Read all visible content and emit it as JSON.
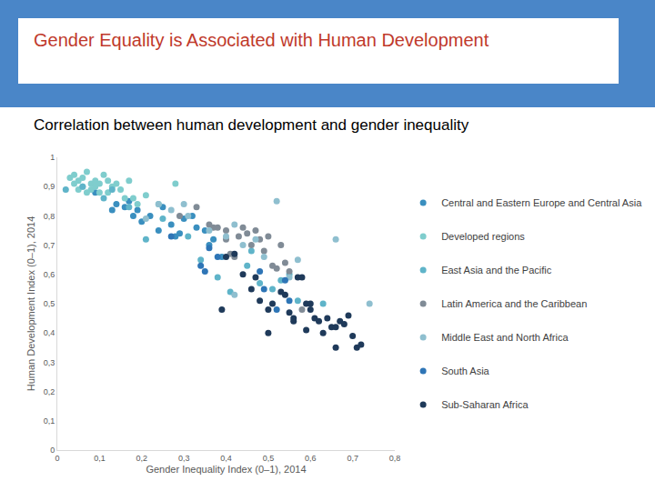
{
  "chart_data": {
    "type": "scatter",
    "title": "Gender Equality is Associated with Human Development",
    "subtitle": "Correlation between human development and gender inequality",
    "x_label": "Gender Inequality Index (0–1), 2014",
    "y_label": "Human Development Index (0–1), 2014",
    "xlim": [
      0,
      0.8
    ],
    "ylim": [
      0,
      1
    ],
    "xticks": [
      0,
      {
        "value": 0.1,
        "label": "0,1"
      },
      {
        "value": 0.2,
        "label": "0,2"
      },
      {
        "value": 0.3,
        "label": "0,3"
      },
      {
        "value": 0.4,
        "label": "0,4"
      },
      {
        "value": 0.5,
        "label": "0,5"
      },
      {
        "value": 0.6,
        "label": "0,6"
      },
      {
        "value": 0.7,
        "label": "0,7"
      },
      {
        "value": 0.8,
        "label": "0,8"
      }
    ],
    "yticks": [
      0,
      {
        "value": 0.1,
        "label": "0,1"
      },
      {
        "value": 0.2,
        "label": "0,2"
      },
      {
        "value": 0.3,
        "label": "0,3"
      },
      {
        "value": 0.4,
        "label": "0,4"
      },
      {
        "value": 0.5,
        "label": "0,5"
      },
      {
        "value": 0.6,
        "label": "0,6"
      },
      {
        "value": 0.7,
        "label": "0,7"
      },
      {
        "value": 0.8,
        "label": "0,8"
      },
      {
        "value": 0.9,
        "label": "0,9"
      },
      1
    ],
    "grid": false,
    "legend": "right",
    "marker": "circle",
    "series": [
      {
        "name": "Central and Eastern Europe and Central Asia",
        "color": "#3a8fbf",
        "x": [
          0.09,
          0.14,
          0.16,
          0.17,
          0.13,
          0.18,
          0.2,
          0.24,
          0.27,
          0.29,
          0.3,
          0.33,
          0.35,
          0.37,
          0.36,
          0.25,
          0.22,
          0.19,
          0.32,
          0.28,
          0.39
        ],
        "values": [
          0.88,
          0.84,
          0.83,
          0.85,
          0.82,
          0.8,
          0.78,
          0.75,
          0.77,
          0.74,
          0.79,
          0.76,
          0.75,
          0.72,
          0.7,
          0.83,
          0.8,
          0.82,
          0.8,
          0.73,
          0.66
        ]
      },
      {
        "name": "Developed regions",
        "color": "#7fcdcd",
        "x": [
          0.04,
          0.05,
          0.07,
          0.08,
          0.03,
          0.06,
          0.09,
          0.1,
          0.11,
          0.12,
          0.13,
          0.08,
          0.07,
          0.1,
          0.12,
          0.14,
          0.15,
          0.16,
          0.17,
          0.18,
          0.05,
          0.09,
          0.06,
          0.04,
          0.28,
          0.21,
          0.24,
          0.19
        ],
        "values": [
          0.94,
          0.92,
          0.95,
          0.91,
          0.93,
          0.9,
          0.92,
          0.91,
          0.94,
          0.92,
          0.9,
          0.89,
          0.88,
          0.88,
          0.88,
          0.91,
          0.89,
          0.86,
          0.92,
          0.86,
          0.89,
          0.9,
          0.93,
          0.91,
          0.91,
          0.87,
          0.84,
          0.84
        ]
      },
      {
        "name": "East Asia and the Pacific",
        "color": "#5fb4c9",
        "x": [
          0.02,
          0.06,
          0.11,
          0.17,
          0.25,
          0.31,
          0.34,
          0.38,
          0.45,
          0.48,
          0.51,
          0.53,
          0.55,
          0.57,
          0.41,
          0.63,
          0.46,
          0.21,
          0.13
        ],
        "values": [
          0.89,
          0.9,
          0.86,
          0.83,
          0.79,
          0.73,
          0.65,
          0.59,
          0.63,
          0.57,
          0.55,
          0.58,
          0.6,
          0.51,
          0.54,
          0.5,
          0.68,
          0.72,
          0.89
        ]
      },
      {
        "name": "Latin America and the Caribbean",
        "color": "#808b96",
        "x": [
          0.29,
          0.33,
          0.36,
          0.38,
          0.4,
          0.41,
          0.43,
          0.44,
          0.45,
          0.46,
          0.47,
          0.48,
          0.49,
          0.5,
          0.51,
          0.52,
          0.53,
          0.54,
          0.55,
          0.42,
          0.58,
          0.4,
          0.37
        ],
        "values": [
          0.8,
          0.83,
          0.77,
          0.76,
          0.75,
          0.67,
          0.73,
          0.76,
          0.74,
          0.7,
          0.75,
          0.72,
          0.68,
          0.73,
          0.63,
          0.62,
          0.7,
          0.64,
          0.61,
          0.66,
          0.48,
          0.72,
          0.76
        ]
      },
      {
        "name": "Middle East and North Africa",
        "color": "#8fbfcf",
        "x": [
          0.24,
          0.27,
          0.21,
          0.3,
          0.52,
          0.36,
          0.4,
          0.42,
          0.44,
          0.47,
          0.49,
          0.55,
          0.57,
          0.66,
          0.74,
          0.42,
          0.31
        ],
        "values": [
          0.84,
          0.82,
          0.79,
          0.84,
          0.85,
          0.75,
          0.73,
          0.77,
          0.7,
          0.72,
          0.66,
          0.59,
          0.65,
          0.72,
          0.5,
          0.53,
          0.8
        ]
      },
      {
        "name": "South Asia",
        "color": "#2e75b6",
        "x": [
          0.27,
          0.36,
          0.34,
          0.35,
          0.48,
          0.54,
          0.55,
          0.52,
          0.49,
          0.38
        ],
        "values": [
          0.73,
          0.69,
          0.63,
          0.61,
          0.61,
          0.58,
          0.51,
          0.48,
          0.55,
          0.66
        ]
      },
      {
        "name": "Sub-Saharan Africa",
        "color": "#1f3a5a",
        "x": [
          0.39,
          0.4,
          0.42,
          0.46,
          0.5,
          0.51,
          0.53,
          0.54,
          0.55,
          0.56,
          0.57,
          0.58,
          0.59,
          0.6,
          0.61,
          0.62,
          0.63,
          0.64,
          0.65,
          0.66,
          0.67,
          0.68,
          0.69,
          0.7,
          0.71,
          0.72,
          0.56,
          0.59,
          0.48,
          0.44,
          0.47,
          0.6,
          0.5,
          0.66
        ],
        "values": [
          0.48,
          0.66,
          0.67,
          0.55,
          0.4,
          0.5,
          0.54,
          0.53,
          0.47,
          0.44,
          0.59,
          0.59,
          0.5,
          0.48,
          0.45,
          0.44,
          0.4,
          0.45,
          0.42,
          0.35,
          0.44,
          0.43,
          0.46,
          0.39,
          0.35,
          0.36,
          0.45,
          0.41,
          0.51,
          0.6,
          0.59,
          0.5,
          0.48,
          0.42
        ]
      }
    ]
  }
}
